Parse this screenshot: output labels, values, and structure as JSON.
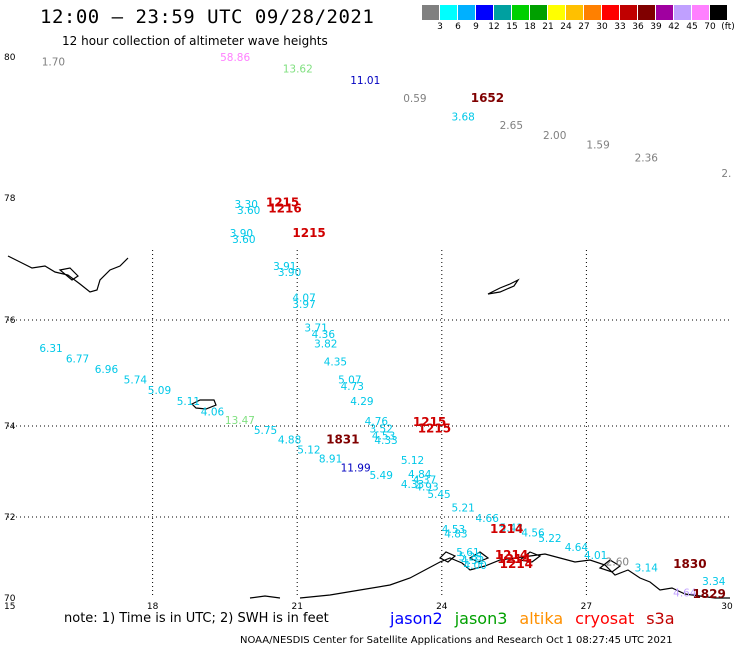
{
  "title": "12:00 – 23:59 UTC 09/28/2021",
  "subtitle": "12 hour collection of altimeter wave heights",
  "colorbar": {
    "colors": [
      "#808080",
      "#00ffff",
      "#00b0ff",
      "#0000ff",
      "#00a0a0",
      "#00d000",
      "#00a000",
      "#ffff00",
      "#ffc000",
      "#ff8000",
      "#ff0000",
      "#c00000",
      "#800000",
      "#a000a0",
      "#c0a0ff",
      "#ff80ff",
      "#000000"
    ],
    "labels": [
      "3",
      "6",
      "9",
      "12",
      "15",
      "18",
      "21",
      "24",
      "27",
      "30",
      "33",
      "36",
      "39",
      "42",
      "45",
      "70",
      "(ft)"
    ]
  },
  "axes": {
    "lon_ticks": [
      "15",
      "18",
      "21",
      "24",
      "27",
      "30"
    ],
    "lat_ticks": [
      "80",
      "78",
      "76",
      "74",
      "72",
      "70"
    ]
  },
  "markers": [
    {
      "t": "1.70",
      "c": "#808080",
      "lon": 15.7,
      "lat": 79.88
    },
    {
      "t": "58.86",
      "c": "#ff80ff",
      "lon": 19.4,
      "lat": 79.94
    },
    {
      "t": "13.62",
      "c": "#80e080",
      "lon": 20.7,
      "lat": 79.78
    },
    {
      "t": "11.01",
      "c": "#0000c0",
      "lon": 22.1,
      "lat": 79.62
    },
    {
      "t": "0.59",
      "c": "#808080",
      "lon": 23.2,
      "lat": 79.36
    },
    {
      "t": "3.68",
      "c": "#00c8e8",
      "lon": 24.2,
      "lat": 79.1
    },
    {
      "t": "2.65",
      "c": "#808080",
      "lon": 25.2,
      "lat": 78.98
    },
    {
      "t": "2.00",
      "c": "#808080",
      "lon": 26.1,
      "lat": 78.84
    },
    {
      "t": "1.59",
      "c": "#808080",
      "lon": 27.0,
      "lat": 78.7
    },
    {
      "t": "2.36",
      "c": "#808080",
      "lon": 28.0,
      "lat": 78.52
    },
    {
      "t": "2.",
      "c": "#808080",
      "lon": 29.8,
      "lat": 78.3
    },
    {
      "t": "3.30",
      "c": "#00c8e8",
      "lon": 19.7,
      "lat": 77.84
    },
    {
      "t": "3.60",
      "c": "#00c8e8",
      "lon": 19.75,
      "lat": 77.74
    },
    {
      "t": "3.90",
      "c": "#00c8e8",
      "lon": 19.6,
      "lat": 77.36
    },
    {
      "t": "3.60",
      "c": "#00c8e8",
      "lon": 19.65,
      "lat": 77.26
    },
    {
      "t": "3.91",
      "c": "#00c8e8",
      "lon": 20.5,
      "lat": 76.82
    },
    {
      "t": "3.90",
      "c": "#00c8e8",
      "lon": 20.6,
      "lat": 76.72
    },
    {
      "t": "4.07",
      "c": "#00c8e8",
      "lon": 20.9,
      "lat": 76.3
    },
    {
      "t": "3.97",
      "c": "#00c8e8",
      "lon": 20.9,
      "lat": 76.2
    },
    {
      "t": "3.71",
      "c": "#00c8e8",
      "lon": 21.15,
      "lat": 75.78
    },
    {
      "t": "4.36",
      "c": "#00c8e8",
      "lon": 21.3,
      "lat": 75.66
    },
    {
      "t": "3.82",
      "c": "#00c8e8",
      "lon": 21.35,
      "lat": 75.48
    },
    {
      "t": "4.35",
      "c": "#00c8e8",
      "lon": 21.55,
      "lat": 75.14
    },
    {
      "t": "6.31",
      "c": "#00c8e8",
      "lon": 15.65,
      "lat": 75.4
    },
    {
      "t": "6.77",
      "c": "#00c8e8",
      "lon": 16.2,
      "lat": 75.2
    },
    {
      "t": "6.96",
      "c": "#00c8e8",
      "lon": 16.8,
      "lat": 75.0
    },
    {
      "t": "5.74",
      "c": "#00c8e8",
      "lon": 17.4,
      "lat": 74.8
    },
    {
      "t": "5.09",
      "c": "#00c8e8",
      "lon": 17.9,
      "lat": 74.6
    },
    {
      "t": "5.11",
      "c": "#00c8e8",
      "lon": 18.5,
      "lat": 74.4
    },
    {
      "t": "4.06",
      "c": "#00c8e8",
      "lon": 19.0,
      "lat": 74.2
    },
    {
      "t": "13.47",
      "c": "#80e080",
      "lon": 19.5,
      "lat": 74.04
    },
    {
      "t": "5.75",
      "c": "#00c8e8",
      "lon": 20.1,
      "lat": 73.82
    },
    {
      "t": "4.88",
      "c": "#00c8e8",
      "lon": 20.6,
      "lat": 73.62
    },
    {
      "t": "5.12",
      "c": "#00c8e8",
      "lon": 21.0,
      "lat": 73.4
    },
    {
      "t": "8.91",
      "c": "#00c8e8",
      "lon": 21.45,
      "lat": 73.2
    },
    {
      "t": "11.99",
      "c": "#0000c0",
      "lon": 21.9,
      "lat": 73.0
    },
    {
      "t": "5.07",
      "c": "#00c8e8",
      "lon": 21.85,
      "lat": 74.8
    },
    {
      "t": "4.73",
      "c": "#00c8e8",
      "lon": 21.9,
      "lat": 74.68
    },
    {
      "t": "4.29",
      "c": "#00c8e8",
      "lon": 22.1,
      "lat": 74.4
    },
    {
      "t": "4.76",
      "c": "#00c8e8",
      "lon": 22.4,
      "lat": 74.02
    },
    {
      "t": "3.52",
      "c": "#00c8e8",
      "lon": 22.5,
      "lat": 73.86
    },
    {
      "t": "4.53",
      "c": "#00c8e8",
      "lon": 22.55,
      "lat": 73.7
    },
    {
      "t": "4.33",
      "c": "#00c8e8",
      "lon": 22.6,
      "lat": 73.6
    },
    {
      "t": "5.12",
      "c": "#00c8e8",
      "lon": 23.15,
      "lat": 73.16
    },
    {
      "t": "5.49",
      "c": "#00c8e8",
      "lon": 22.5,
      "lat": 72.84
    },
    {
      "t": "4.84",
      "c": "#00c8e8",
      "lon": 23.3,
      "lat": 72.86
    },
    {
      "t": "4.37",
      "c": "#00c8e8",
      "lon": 23.4,
      "lat": 72.74
    },
    {
      "t": "4.33",
      "c": "#00c8e8",
      "lon": 23.15,
      "lat": 72.64
    },
    {
      "t": "4.93",
      "c": "#00c8e8",
      "lon": 23.45,
      "lat": 72.58
    },
    {
      "t": "5.45",
      "c": "#00c8e8",
      "lon": 23.7,
      "lat": 72.42
    },
    {
      "t": "5.21",
      "c": "#00c8e8",
      "lon": 24.2,
      "lat": 72.12
    },
    {
      "t": "4.66",
      "c": "#00c8e8",
      "lon": 24.7,
      "lat": 71.88
    },
    {
      "t": "5.43",
      "c": "#00c8e8",
      "lon": 25.2,
      "lat": 71.64
    },
    {
      "t": "4.56",
      "c": "#00c8e8",
      "lon": 25.65,
      "lat": 71.52
    },
    {
      "t": "5.22",
      "c": "#00c8e8",
      "lon": 26.0,
      "lat": 71.38
    },
    {
      "t": "4.64",
      "c": "#00c8e8",
      "lon": 26.55,
      "lat": 71.16
    },
    {
      "t": "4.01",
      "c": "#00c8e8",
      "lon": 26.95,
      "lat": 70.96
    },
    {
      "t": "2.60",
      "c": "#808080",
      "lon": 27.4,
      "lat": 70.8
    },
    {
      "t": "3.14",
      "c": "#00c8e8",
      "lon": 28.0,
      "lat": 70.66
    },
    {
      "t": "4.53",
      "c": "#00c8e8",
      "lon": 24.0,
      "lat": 71.6
    },
    {
      "t": "4.83",
      "c": "#00c8e8",
      "lon": 24.05,
      "lat": 71.5
    },
    {
      "t": "5.61",
      "c": "#00c8e8",
      "lon": 24.3,
      "lat": 71.04
    },
    {
      "t": "5.28",
      "c": "#00c8e8",
      "lon": 24.35,
      "lat": 70.92
    },
    {
      "t": "4.32",
      "c": "#00c8e8",
      "lon": 24.4,
      "lat": 70.84
    },
    {
      "t": "4.00",
      "c": "#00c8e8",
      "lon": 24.45,
      "lat": 70.72
    },
    {
      "t": "3.34",
      "c": "#00c8e8",
      "lon": 29.4,
      "lat": 70.32
    },
    {
      "t": "4.64",
      "c": "#c0a0ff",
      "lon": 28.8,
      "lat": 70.04
    }
  ],
  "passes": [
    {
      "t": "1652",
      "c": "#800000",
      "lon": 24.6,
      "lat": 79.36
    },
    {
      "t": "1215",
      "c": "#d00000",
      "lon": 20.35,
      "lat": 77.86
    },
    {
      "t": "1216",
      "c": "#d00000",
      "lon": 20.4,
      "lat": 77.76
    },
    {
      "t": "1215",
      "c": "#d00000",
      "lon": 20.9,
      "lat": 77.36
    },
    {
      "t": "1831",
      "c": "#800000",
      "lon": 21.6,
      "lat": 73.62
    },
    {
      "t": "1215",
      "c": "#d00000",
      "lon": 23.4,
      "lat": 74.0
    },
    {
      "t": "1215",
      "c": "#d00000",
      "lon": 23.5,
      "lat": 73.86
    },
    {
      "t": "1214",
      "c": "#d00000",
      "lon": 25.0,
      "lat": 71.6
    },
    {
      "t": "1214",
      "c": "#d00000",
      "lon": 25.1,
      "lat": 70.96
    },
    {
      "t": "1214",
      "c": "#d00000",
      "lon": 25.15,
      "lat": 70.86
    },
    {
      "t": "1214",
      "c": "#d00000",
      "lon": 25.2,
      "lat": 70.74
    },
    {
      "t": "1830",
      "c": "#800000",
      "lon": 28.8,
      "lat": 70.74
    },
    {
      "t": "1829",
      "c": "#800000",
      "lon": 29.2,
      "lat": 70.0
    }
  ],
  "note": "note:  1) Time is in UTC;  2) SWH is in feet",
  "satellites": [
    {
      "name": "jason2",
      "c": "#0000ff"
    },
    {
      "name": "jason3",
      "c": "#00a000"
    },
    {
      "name": "altika",
      "c": "#ff9000"
    },
    {
      "name": "cryosat",
      "c": "#ff0000"
    },
    {
      "name": "s3a",
      "c": "#c00000"
    }
  ],
  "credit": "NOAA/NESDIS Center for Satellite Applications and Research    Oct  1 08:27:45 UTC 2021"
}
